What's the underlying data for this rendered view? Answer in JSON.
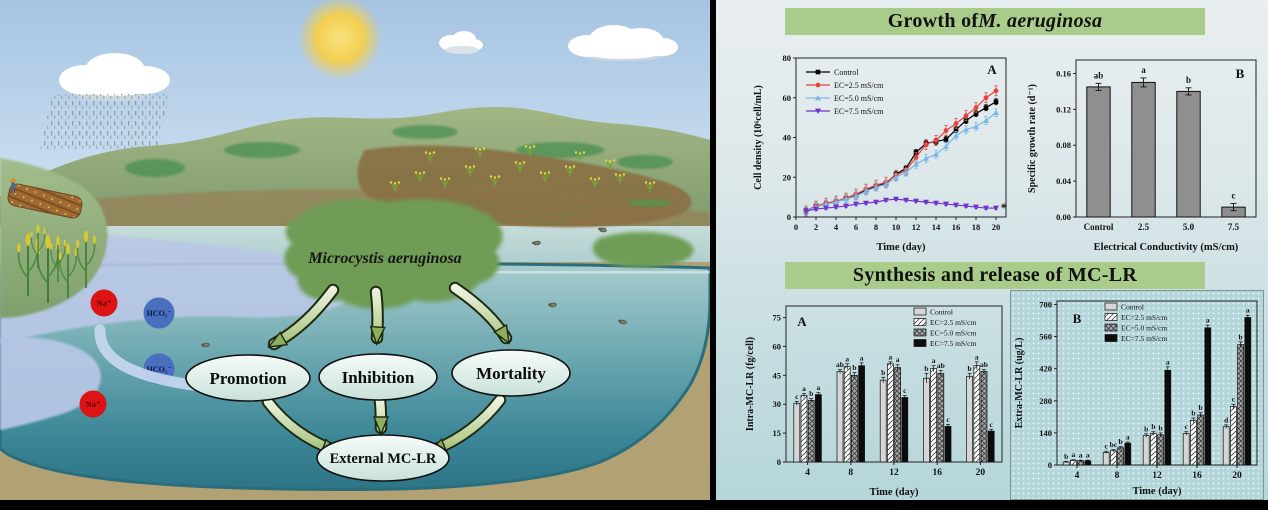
{
  "illustration": {
    "algae_label": "Microcystis aeruginosa",
    "node_promotion": "Promotion",
    "node_inhibition": "Inhibition",
    "node_mortality": "Mortality",
    "node_external": "External MC-LR",
    "ion_na": "Na⁺",
    "ion_hco3": "HCO₃⁻"
  },
  "sections": {
    "growth_title_prefix": "Growth of ",
    "growth_title_species": "M. aeruginosa",
    "synthesis_title": "Synthesis and release of MC-LR"
  },
  "colors": {
    "header_green": "#a9cc8b",
    "control": "#000000",
    "ec25": "#e8433f",
    "ec50": "#79b8e8",
    "ec75": "#7133cc",
    "bar_gray": "#8f8f8f"
  },
  "chart_data": [
    {
      "id": "growth_line",
      "type": "line",
      "panel_label": "A",
      "xlabel": "Time (day)",
      "ylabel": "Cell density (10⁶cell/mL)",
      "xlim": [
        0,
        21
      ],
      "ylim": [
        0,
        80
      ],
      "xticks": [
        0,
        2,
        4,
        6,
        8,
        10,
        12,
        14,
        16,
        18,
        20
      ],
      "yticks": [
        0,
        20,
        40,
        60,
        80
      ],
      "x": [
        1,
        2,
        3,
        4,
        5,
        6,
        7,
        8,
        9,
        10,
        11,
        12,
        13,
        14,
        15,
        16,
        17,
        18,
        19,
        20
      ],
      "series": [
        {
          "name": "Control",
          "color": "#000000",
          "marker": "square",
          "err": 1.5,
          "values": [
            3,
            5.5,
            6.5,
            7.5,
            9.5,
            11,
            13.5,
            15.5,
            17,
            21.5,
            24.5,
            32.5,
            37,
            38,
            39,
            44,
            48.5,
            52,
            55,
            58
          ]
        },
        {
          "name": "EC=2.5 mS/cm",
          "color": "#e8433f",
          "marker": "circle",
          "err": 2.5,
          "values": [
            3,
            5.5,
            7,
            8,
            9.5,
            11.5,
            14,
            16,
            17.5,
            21,
            23.5,
            30,
            36.5,
            38.5,
            43.5,
            47,
            51,
            55,
            60,
            63.5
          ]
        },
        {
          "name": "EC=5.0 mS/cm",
          "color": "#79b8e8",
          "marker": "tri-up",
          "err": 2,
          "values": [
            3,
            5,
            6.5,
            7.5,
            9,
            10.5,
            13,
            15,
            16.5,
            20,
            22.5,
            26.5,
            29.5,
            31.5,
            35.5,
            41,
            44,
            45.5,
            48.5,
            52.5
          ]
        },
        {
          "name": "EC=7.5 mS/cm",
          "color": "#7133cc",
          "marker": "tri-down",
          "err": 0.8,
          "values": [
            3,
            4,
            4.5,
            5,
            5.5,
            6.5,
            7,
            7.5,
            8.5,
            9,
            8.5,
            8,
            7.5,
            7,
            6.5,
            6,
            5.5,
            5,
            4.5,
            4.5
          ]
        }
      ],
      "end_annotation": "*"
    },
    {
      "id": "growth_rate",
      "type": "bar",
      "panel_label": "B",
      "xlabel": "Electrical Conductivity (mS/cm)",
      "ylabel": "Specific growth rate (d⁻¹)",
      "categories": [
        "Control",
        "2.5",
        "5.0",
        "7.5"
      ],
      "values": [
        0.145,
        0.15,
        0.14,
        0.011
      ],
      "errors": [
        0.004,
        0.005,
        0.004,
        0.004
      ],
      "letters": [
        "ab",
        "a",
        "b",
        "c"
      ],
      "yticks": [
        0,
        0.04,
        0.08,
        0.12,
        0.16
      ],
      "ylim": [
        0,
        0.175
      ],
      "ydec": 2,
      "bar_color": "#8f8f8f"
    },
    {
      "id": "intra",
      "type": "grouped_bar",
      "panel_label": "A",
      "xlabel": "Time (day)",
      "ylabel": "Intra-MC-LR (fg/cell)",
      "categories": [
        "4",
        "8",
        "12",
        "16",
        "20"
      ],
      "yticks": [
        0,
        15,
        30,
        45,
        60,
        75
      ],
      "ylim": [
        0,
        81
      ],
      "ydec": 0,
      "series": [
        {
          "name": "Control",
          "fill": "lightgray",
          "values": [
            30.5,
            47,
            42.5,
            43.5,
            44.5
          ],
          "errors": [
            1,
            1,
            1.5,
            2.5,
            1.5
          ],
          "letters": [
            "c",
            "ab",
            "b",
            "b",
            "b"
          ]
        },
        {
          "name": "EC=2.5 mS/cm",
          "fill": "hatch",
          "values": [
            34.5,
            49.5,
            51,
            48.5,
            50
          ],
          "errors": [
            1,
            1.5,
            1,
            1.5,
            2
          ],
          "letters": [
            "a",
            "a",
            "a",
            "a",
            "a"
          ]
        },
        {
          "name": "EC=5.0 mS/cm",
          "fill": "crosshatch",
          "values": [
            32,
            45,
            49,
            46,
            47
          ],
          "errors": [
            1,
            1.5,
            1.5,
            1.5,
            1
          ],
          "letters": [
            "b",
            "b",
            "a",
            "ab",
            "ab"
          ]
        },
        {
          "name": "EC=7.5 mS/cm",
          "fill": "black",
          "values": [
            35,
            50,
            33.5,
            18.5,
            16
          ],
          "errors": [
            1,
            1.5,
            1,
            1,
            1
          ],
          "letters": [
            "a",
            "a",
            "c",
            "c",
            "c"
          ]
        }
      ]
    },
    {
      "id": "extra",
      "type": "grouped_bar",
      "panel_label": "B",
      "xlabel": "Time (day)",
      "ylabel": "Extra-MC-LR (ug/L)",
      "categories": [
        "4",
        "8",
        "12",
        "16",
        "20"
      ],
      "yticks": [
        0,
        140,
        280,
        420,
        560,
        700
      ],
      "ylim": [
        0,
        715
      ],
      "ydec": 0,
      "series": [
        {
          "name": "Control",
          "fill": "lightgray",
          "values": [
            13,
            55,
            128,
            137,
            167
          ],
          "errors": [
            3,
            5,
            8,
            8,
            8
          ],
          "letters": [
            "b",
            "c",
            "b",
            "c",
            "d"
          ]
        },
        {
          "name": "EC=2.5 mS/cm",
          "fill": "hatch",
          "values": [
            20,
            62,
            137,
            195,
            255
          ],
          "errors": [
            3,
            5,
            8,
            10,
            10
          ],
          "letters": [
            "a",
            "bc",
            "b",
            "b",
            "c"
          ]
        },
        {
          "name": "EC=5.0 mS/cm",
          "fill": "crosshatch",
          "values": [
            18,
            75,
            132,
            218,
            525
          ],
          "errors": [
            3,
            5,
            8,
            10,
            12
          ],
          "letters": [
            "a",
            "b",
            "b",
            "b",
            "b"
          ]
        },
        {
          "name": "EC=7.5 mS/cm",
          "fill": "black",
          "values": [
            18,
            95,
            413,
            598,
            643
          ],
          "errors": [
            3,
            5,
            15,
            12,
            10
          ],
          "letters": [
            "a",
            "a",
            "a",
            "a",
            "a"
          ]
        }
      ]
    }
  ]
}
